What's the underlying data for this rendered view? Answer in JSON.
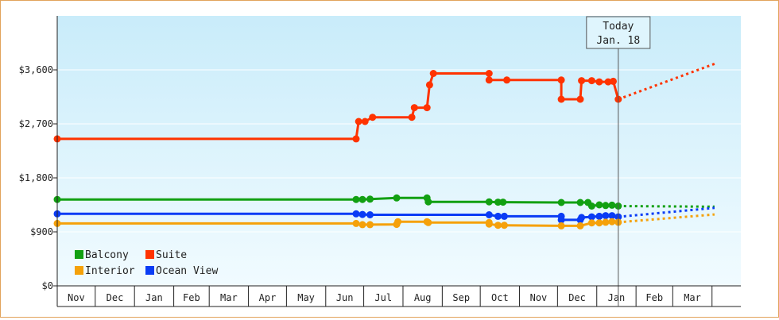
{
  "chart_data": {
    "type": "line",
    "title": "",
    "xlabel": "",
    "ylabel": "",
    "x_unit": "date",
    "ylim": [
      0,
      4500
    ],
    "xlim": [
      "2010-11-01",
      "2012-04-01"
    ],
    "yticks": [
      {
        "value": 0,
        "label": "$0"
      },
      {
        "value": 900,
        "label": "$900"
      },
      {
        "value": 1800,
        "label": "$1,800"
      },
      {
        "value": 2700,
        "label": "$2,700"
      },
      {
        "value": 3600,
        "label": "$3,600"
      }
    ],
    "month_labels": [
      "Nov",
      "Dec",
      "Jan",
      "Feb",
      "Mar",
      "Apr",
      "May",
      "Jun",
      "Jul",
      "Aug",
      "Sep",
      "Oct",
      "Nov",
      "Dec",
      "Jan",
      "Feb",
      "Mar"
    ],
    "grid": "horizontal",
    "legend_position": "bottom-left",
    "today": {
      "label_line1": "Today",
      "label_line2": "Jan. 18",
      "date": "2012-01-18"
    },
    "series": [
      {
        "name": "Balcony",
        "color": "#12a012",
        "points": [
          [
            "2010-11-01",
            1440
          ],
          [
            "2011-06-25",
            1440
          ],
          [
            "2011-06-30",
            1440
          ],
          [
            "2011-07-06",
            1445
          ],
          [
            "2011-07-27",
            1465
          ],
          [
            "2011-08-20",
            1465
          ],
          [
            "2011-08-21",
            1400
          ],
          [
            "2011-10-08",
            1400
          ],
          [
            "2011-10-15",
            1395
          ],
          [
            "2011-10-19",
            1395
          ],
          [
            "2011-12-04",
            1390
          ],
          [
            "2011-12-19",
            1390
          ],
          [
            "2011-12-25",
            1390
          ],
          [
            "2011-12-28",
            1330
          ],
          [
            "2012-01-03",
            1350
          ],
          [
            "2012-01-08",
            1340
          ],
          [
            "2012-01-13",
            1345
          ],
          [
            "2012-01-18",
            1330
          ]
        ],
        "forecast": [
          [
            "2012-01-18",
            1330
          ],
          [
            "2012-04-03",
            1320
          ]
        ]
      },
      {
        "name": "Suite",
        "color": "#ff3300",
        "points": [
          [
            "2010-11-01",
            2450
          ],
          [
            "2011-06-25",
            2450
          ],
          [
            "2011-06-27",
            2740
          ],
          [
            "2011-07-02",
            2740
          ],
          [
            "2011-07-08",
            2810
          ],
          [
            "2011-08-08",
            2810
          ],
          [
            "2011-08-10",
            2970
          ],
          [
            "2011-08-20",
            2970
          ],
          [
            "2011-08-22",
            3350
          ],
          [
            "2011-08-25",
            3540
          ],
          [
            "2011-10-08",
            3540
          ],
          [
            "2011-10-08",
            3430
          ],
          [
            "2011-10-22",
            3430
          ],
          [
            "2011-12-04",
            3430
          ],
          [
            "2011-12-04",
            3110
          ],
          [
            "2011-12-19",
            3110
          ],
          [
            "2011-12-20",
            3420
          ],
          [
            "2011-12-28",
            3420
          ],
          [
            "2012-01-03",
            3400
          ],
          [
            "2012-01-10",
            3400
          ],
          [
            "2012-01-14",
            3410
          ],
          [
            "2012-01-18",
            3110
          ]
        ],
        "forecast": [
          [
            "2012-01-18",
            3110
          ],
          [
            "2012-04-03",
            3700
          ]
        ]
      },
      {
        "name": "Interior",
        "color": "#f5a10a",
        "points": [
          [
            "2010-11-01",
            1040
          ],
          [
            "2011-06-25",
            1040
          ],
          [
            "2011-06-30",
            1020
          ],
          [
            "2011-07-06",
            1020
          ],
          [
            "2011-07-27",
            1025
          ],
          [
            "2011-07-28",
            1070
          ],
          [
            "2011-08-20",
            1070
          ],
          [
            "2011-08-21",
            1055
          ],
          [
            "2011-10-08",
            1055
          ],
          [
            "2011-10-08",
            1030
          ],
          [
            "2011-10-15",
            1010
          ],
          [
            "2011-10-20",
            1010
          ],
          [
            "2011-12-04",
            1000
          ],
          [
            "2011-12-19",
            1000
          ],
          [
            "2011-12-28",
            1050
          ],
          [
            "2012-01-03",
            1050
          ],
          [
            "2012-01-08",
            1060
          ],
          [
            "2012-01-13",
            1070
          ],
          [
            "2012-01-18",
            1060
          ]
        ],
        "forecast": [
          [
            "2012-01-18",
            1060
          ],
          [
            "2012-04-03",
            1190
          ]
        ]
      },
      {
        "name": "Ocean View",
        "color": "#0a3cf5",
        "points": [
          [
            "2010-11-01",
            1200
          ],
          [
            "2011-06-25",
            1200
          ],
          [
            "2011-06-30",
            1190
          ],
          [
            "2011-07-06",
            1185
          ],
          [
            "2011-10-08",
            1185
          ],
          [
            "2011-10-15",
            1160
          ],
          [
            "2011-10-20",
            1160
          ],
          [
            "2011-12-04",
            1160
          ],
          [
            "2011-12-04",
            1100
          ],
          [
            "2011-12-19",
            1100
          ],
          [
            "2011-12-20",
            1140
          ],
          [
            "2011-12-28",
            1150
          ],
          [
            "2012-01-03",
            1160
          ],
          [
            "2012-01-08",
            1170
          ],
          [
            "2012-01-13",
            1170
          ],
          [
            "2012-01-18",
            1150
          ]
        ],
        "forecast": [
          [
            "2012-01-18",
            1150
          ],
          [
            "2012-04-03",
            1300
          ]
        ]
      }
    ]
  }
}
